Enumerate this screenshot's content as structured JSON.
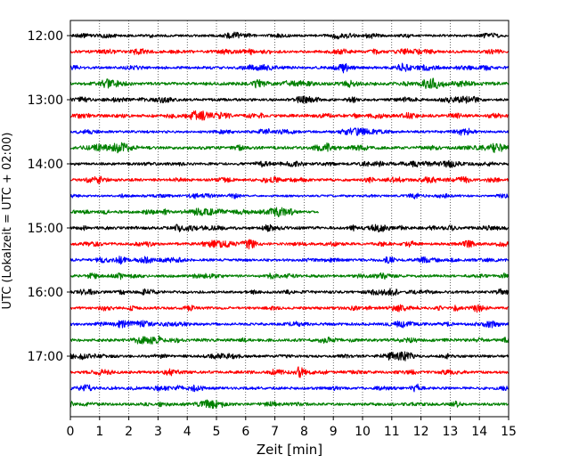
{
  "chart_data": {
    "type": "line",
    "title": "",
    "xlabel": "Zeit  [min]",
    "ylabel": "UTC (Lokalzeit = UTC + 02:00)",
    "xlim": [
      0,
      15
    ],
    "x_ticks": [
      "0",
      "1",
      "2",
      "3",
      "4",
      "5",
      "6",
      "7",
      "8",
      "9",
      "10",
      "11",
      "12",
      "13",
      "14",
      "15"
    ],
    "y_ticks": [
      {
        "label": "12:00",
        "trace": 0
      },
      {
        "label": "13:00",
        "trace": 4
      },
      {
        "label": "14:00",
        "trace": 8
      },
      {
        "label": "15:00",
        "trace": 12
      },
      {
        "label": "16:00",
        "trace": 16
      },
      {
        "label": "17:00",
        "trace": 20
      }
    ],
    "trace_interval_min": 15,
    "trace_colors": [
      "#000000",
      "#ff0000",
      "#0000ff",
      "#008000"
    ],
    "traces": [
      {
        "start": "12:00",
        "color": "#000000",
        "amplitude": 0.9,
        "end_min": 15
      },
      {
        "start": "12:15",
        "color": "#ff0000",
        "amplitude": 1.0,
        "end_min": 15
      },
      {
        "start": "12:30",
        "color": "#0000ff",
        "amplitude": 1.0,
        "end_min": 15
      },
      {
        "start": "12:45",
        "color": "#008000",
        "amplitude": 1.2,
        "end_min": 15
      },
      {
        "start": "13:00",
        "color": "#000000",
        "amplitude": 1.0,
        "end_min": 15
      },
      {
        "start": "13:15",
        "color": "#ff0000",
        "amplitude": 1.1,
        "end_min": 15
      },
      {
        "start": "13:30",
        "color": "#0000ff",
        "amplitude": 0.9,
        "end_min": 15
      },
      {
        "start": "13:45",
        "color": "#008000",
        "amplitude": 1.1,
        "end_min": 15
      },
      {
        "start": "14:00",
        "color": "#000000",
        "amplitude": 1.0,
        "end_min": 15
      },
      {
        "start": "14:15",
        "color": "#ff0000",
        "amplitude": 1.0,
        "end_min": 15
      },
      {
        "start": "14:30",
        "color": "#0000ff",
        "amplitude": 0.8,
        "end_min": 15
      },
      {
        "start": "14:45",
        "color": "#008000",
        "amplitude": 1.0,
        "end_min": 8.5
      },
      {
        "start": "15:00",
        "color": "#000000",
        "amplitude": 1.1,
        "end_min": 15
      },
      {
        "start": "15:15",
        "color": "#ff0000",
        "amplitude": 1.0,
        "end_min": 15
      },
      {
        "start": "15:30",
        "color": "#0000ff",
        "amplitude": 1.0,
        "end_min": 15
      },
      {
        "start": "15:45",
        "color": "#008000",
        "amplitude": 1.0,
        "end_min": 15
      },
      {
        "start": "16:00",
        "color": "#000000",
        "amplitude": 1.0,
        "end_min": 15
      },
      {
        "start": "16:15",
        "color": "#ff0000",
        "amplitude": 1.0,
        "end_min": 15
      },
      {
        "start": "16:30",
        "color": "#0000ff",
        "amplitude": 1.0,
        "end_min": 15
      },
      {
        "start": "16:45",
        "color": "#008000",
        "amplitude": 1.1,
        "end_min": 15
      },
      {
        "start": "17:00",
        "color": "#000000",
        "amplitude": 1.0,
        "end_min": 15
      },
      {
        "start": "17:15",
        "color": "#ff0000",
        "amplitude": 1.0,
        "end_min": 15
      },
      {
        "start": "17:30",
        "color": "#0000ff",
        "amplitude": 1.0,
        "end_min": 15
      },
      {
        "start": "17:45",
        "color": "#008000",
        "amplitude": 1.0,
        "end_min": 15
      }
    ],
    "grid": "vertical-dotted",
    "legend": "none"
  }
}
